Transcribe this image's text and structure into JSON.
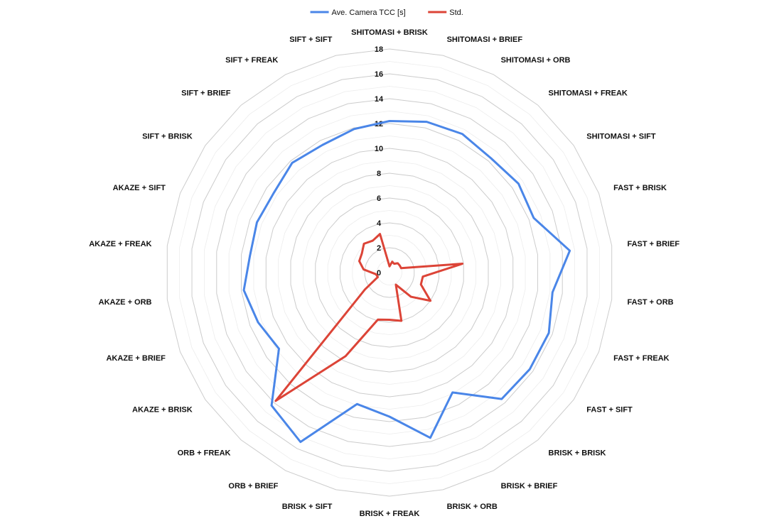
{
  "chart_data": {
    "type": "radar",
    "categories": [
      "SHITOMASI + BRISK",
      "SHITOMASI + BRIEF",
      "SHITOMASI + ORB",
      "SHITOMASI + FREAK",
      "SHITOMASI + SIFT",
      "FAST + BRISK",
      "FAST + BRIEF",
      "FAST + ORB",
      "FAST + FREAK",
      "FAST + SIFT",
      "BRISK + BRISK",
      "BRISK + BRIEF",
      "BRISK + ORB",
      "BRISK + FREAK",
      "BRISK + SIFT",
      "ORB + BRIEF",
      "ORB + FREAK",
      "AKAZE + BRISK",
      "AKAZE + BRIEF",
      "AKAZE + ORB",
      "AKAZE + FREAK",
      "AKAZE + SIFT",
      "SIFT + BRISK",
      "SIFT + BRIEF",
      "SIFT + FREAK",
      "SIFT + SIFT"
    ],
    "series": [
      {
        "name": "Ave. Camera TCC [s]",
        "color": "#4a86e8",
        "values": [
          12.2,
          12.5,
          12.6,
          12.3,
          12.6,
          12.4,
          14.6,
          13.2,
          13.7,
          13.7,
          13.6,
          10.9,
          13.7,
          11.6,
          10.9,
          15.4,
          14.3,
          10.8,
          11.3,
          11.8,
          11.3,
          11.4,
          11.3,
          11.8,
          11.6,
          11.9
        ]
      },
      {
        "name": "Std.",
        "color": "#dc4437",
        "values": [
          0.5,
          0.9,
          0.8,
          1.0,
          1.0,
          1.0,
          5.9,
          2.7,
          2.7,
          4.0,
          2.6,
          1.1,
          4.0,
          3.8,
          3.9,
          7.6,
          13.8,
          2.4,
          1.0,
          1.1,
          2.1,
          2.6,
          2.7,
          3.1,
          2.9,
          3.2
        ]
      }
    ],
    "r_ticks": [
      0,
      2,
      4,
      6,
      8,
      10,
      12,
      14,
      16,
      18
    ],
    "r_range": [
      0,
      18
    ],
    "minor_grid_step": 1,
    "grid": true,
    "legend_position": "top-center"
  }
}
